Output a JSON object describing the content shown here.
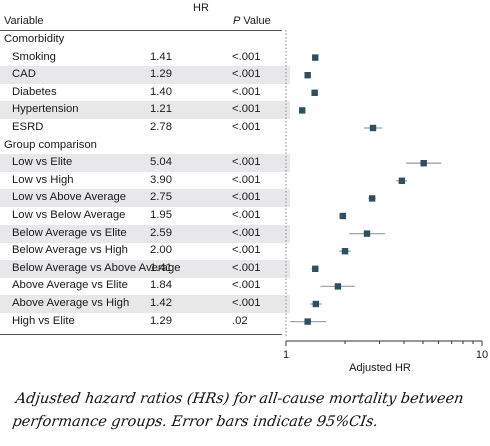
{
  "columns": {
    "variable": "Variable",
    "hr": "HR",
    "p_value": "P Value"
  },
  "caption": "Adjusted hazard ratios (HRs) for all-cause mortality between performance groups. Error bars indicate 95%CIs.",
  "colors": {
    "marker": "#2f4f5f",
    "ci": "#9aa8b0",
    "shade": "#e8e8ea"
  },
  "chart_data": {
    "type": "forest",
    "xlabel": "Adjusted HR",
    "xscale": "log",
    "xlim": [
      1,
      10
    ],
    "xticks": [
      1,
      10
    ],
    "rows": [
      {
        "kind": "section",
        "label": "Comorbidity"
      },
      {
        "kind": "item",
        "label": "Smoking",
        "hr": "1.41",
        "p": "<.001",
        "est": 1.41,
        "lo": 1.36,
        "hi": 1.46
      },
      {
        "kind": "item",
        "label": "CAD",
        "hr": "1.29",
        "p": "<.001",
        "est": 1.29,
        "lo": 1.25,
        "hi": 1.34
      },
      {
        "kind": "item",
        "label": "Diabetes",
        "hr": "1.40",
        "p": "<.001",
        "est": 1.4,
        "lo": 1.35,
        "hi": 1.45
      },
      {
        "kind": "item",
        "label": "Hypertension",
        "hr": "1.21",
        "p": "<.001",
        "est": 1.21,
        "lo": 1.17,
        "hi": 1.25
      },
      {
        "kind": "item",
        "label": "ESRD",
        "hr": "2.78",
        "p": "<.001",
        "est": 2.78,
        "lo": 2.5,
        "hi": 3.1
      },
      {
        "kind": "section",
        "label": "Group comparison"
      },
      {
        "kind": "item",
        "label": "Low vs Elite",
        "hr": "5.04",
        "p": "<.001",
        "est": 5.04,
        "lo": 4.1,
        "hi": 6.2
      },
      {
        "kind": "item",
        "label": "Low vs High",
        "hr": "3.90",
        "p": "<.001",
        "est": 3.9,
        "lo": 3.65,
        "hi": 4.15
      },
      {
        "kind": "item",
        "label": "Low vs Above Average",
        "hr": "2.75",
        "p": "<.001",
        "est": 2.75,
        "lo": 2.63,
        "hi": 2.87
      },
      {
        "kind": "item",
        "label": "Low vs Below Average",
        "hr": "1.95",
        "p": "<.001",
        "est": 1.95,
        "lo": 1.87,
        "hi": 2.03
      },
      {
        "kind": "item",
        "label": "Below Average vs Elite",
        "hr": "2.59",
        "p": "<.001",
        "est": 2.59,
        "lo": 2.1,
        "hi": 3.2
      },
      {
        "kind": "item",
        "label": "Below Average vs High",
        "hr": "2.00",
        "p": "<.001",
        "est": 2.0,
        "lo": 1.87,
        "hi": 2.14
      },
      {
        "kind": "item",
        "label": "Below Average vs Above Average",
        "hr": "1.41",
        "p": "<.001",
        "est": 1.41,
        "lo": 1.35,
        "hi": 1.47
      },
      {
        "kind": "item",
        "label": "Above Average vs Elite",
        "hr": "1.84",
        "p": "<.001",
        "est": 1.84,
        "lo": 1.5,
        "hi": 2.25
      },
      {
        "kind": "item",
        "label": "Above Average vs High",
        "hr": "1.42",
        "p": "<.001",
        "est": 1.42,
        "lo": 1.33,
        "hi": 1.52
      },
      {
        "kind": "item",
        "label": "High vs Elite",
        "hr": "1.29",
        "p": ".02",
        "est": 1.29,
        "lo": 1.05,
        "hi": 1.6
      }
    ]
  }
}
